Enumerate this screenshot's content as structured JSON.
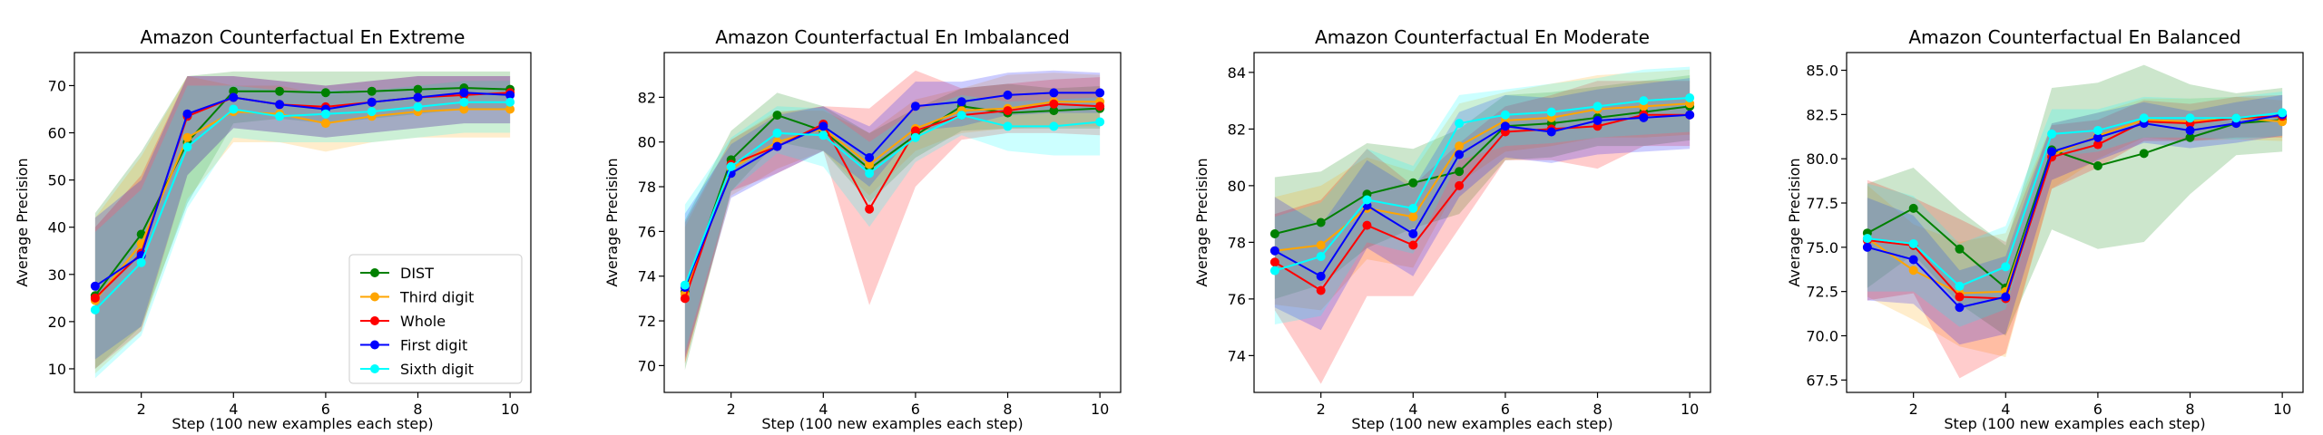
{
  "figure": {
    "steps": [
      1,
      2,
      3,
      4,
      5,
      6,
      7,
      8,
      9,
      10
    ]
  },
  "chart_data": [
    {
      "type": "line",
      "title": "Amazon Counterfactual En Extreme",
      "xlabel": "Step (100 new examples each step)",
      "ylabel": "Average Precision",
      "xlim": [
        0.55,
        10.45
      ],
      "ylim": [
        5,
        77
      ],
      "xticks": [
        2,
        4,
        6,
        8,
        10
      ],
      "yticks": [
        10,
        20,
        30,
        40,
        50,
        60,
        70
      ],
      "x": [
        1,
        2,
        3,
        4,
        5,
        6,
        7,
        8,
        9,
        10
      ],
      "legend": "lower right",
      "series": [
        {
          "name": "DIST",
          "color": "#008000",
          "values": [
            25.5,
            38.5,
            58.0,
            68.8,
            68.8,
            68.5,
            68.8,
            69.2,
            69.5,
            69.2
          ],
          "lower": [
            10,
            19,
            45,
            62,
            63,
            62,
            63,
            64,
            65,
            65
          ],
          "upper": [
            43,
            56,
            72,
            73,
            73,
            73,
            73,
            73,
            73,
            73
          ]
        },
        {
          "name": "Third digit",
          "color": "#ffa500",
          "values": [
            24.5,
            36.5,
            59.0,
            64.5,
            64.0,
            62.0,
            63.5,
            64.5,
            65.0,
            65.0
          ],
          "lower": [
            9,
            18,
            46,
            58,
            58,
            56,
            58,
            59,
            59,
            59
          ],
          "upper": [
            42,
            55,
            72,
            70,
            70,
            68,
            69,
            70,
            71,
            71
          ]
        },
        {
          "name": "Whole",
          "color": "#ff0000",
          "values": [
            25.0,
            34.5,
            63.5,
            67.5,
            66.0,
            65.5,
            66.5,
            67.5,
            68.0,
            68.5
          ],
          "lower": [
            10,
            18,
            51,
            61,
            60,
            59,
            60,
            61,
            62,
            62
          ],
          "upper": [
            40,
            51,
            72,
            72,
            71,
            70,
            71,
            72,
            72,
            72
          ]
        },
        {
          "name": "First digit",
          "color": "#0000ff",
          "values": [
            27.5,
            34.0,
            64.0,
            67.5,
            66.0,
            65.0,
            66.5,
            67.5,
            68.5,
            68.0
          ],
          "lower": [
            12,
            19,
            51,
            61,
            60,
            59,
            60,
            61,
            62,
            62
          ],
          "upper": [
            42,
            50,
            72,
            72,
            71,
            70,
            71,
            72,
            72,
            72
          ]
        },
        {
          "name": "Sixth digit",
          "color": "#00ffff",
          "values": [
            22.5,
            32.5,
            57.0,
            65.0,
            63.5,
            64.0,
            64.5,
            65.5,
            66.5,
            66.5
          ],
          "lower": [
            8,
            17,
            44,
            59,
            58,
            58,
            58,
            59,
            60,
            60
          ],
          "upper": [
            39,
            48,
            70,
            70,
            69,
            69,
            69,
            70,
            71,
            71
          ]
        }
      ]
    },
    {
      "type": "line",
      "title": "Amazon Counterfactual En Imbalanced",
      "xlabel": "Step (100 new examples each step)",
      "ylabel": "Average Precision",
      "xlim": [
        0.55,
        10.45
      ],
      "ylim": [
        68.8,
        84.0
      ],
      "xticks": [
        2,
        4,
        6,
        8,
        10
      ],
      "yticks": [
        70,
        72,
        74,
        76,
        78,
        80,
        82
      ],
      "x": [
        1,
        2,
        3,
        4,
        5,
        6,
        7,
        8,
        9,
        10
      ],
      "legend": "",
      "series": [
        {
          "name": "DIST",
          "color": "#008000",
          "values": [
            73.3,
            79.2,
            81.2,
            80.5,
            78.8,
            80.3,
            81.6,
            81.3,
            81.4,
            81.5
          ],
          "lower": [
            69.8,
            77.8,
            80.0,
            79.6,
            77.3,
            79.3,
            80.5,
            80.6,
            80.6,
            80.6
          ],
          "upper": [
            76.5,
            80.5,
            82.2,
            81.6,
            80.4,
            81.5,
            82.4,
            82.6,
            82.4,
            82.5
          ]
        },
        {
          "name": "Third digit",
          "color": "#ffa500",
          "values": [
            73.2,
            78.8,
            80.0,
            80.6,
            79.0,
            80.6,
            81.4,
            81.5,
            81.8,
            81.8
          ],
          "lower": [
            70.1,
            77.6,
            78.8,
            79.6,
            77.6,
            79.6,
            80.4,
            80.6,
            80.7,
            80.7
          ],
          "upper": [
            76.2,
            80.1,
            81.4,
            81.4,
            80.4,
            81.9,
            82.4,
            83.0,
            83.1,
            83.0
          ]
        },
        {
          "name": "Whole",
          "color": "#ff0000",
          "values": [
            73.0,
            79.0,
            79.8,
            80.8,
            77.0,
            80.5,
            81.2,
            81.4,
            81.7,
            81.6
          ],
          "lower": [
            70.1,
            77.8,
            78.6,
            79.6,
            72.7,
            78.0,
            80.1,
            80.4,
            80.4,
            80.3
          ],
          "upper": [
            76.4,
            80.1,
            81.3,
            81.6,
            81.5,
            83.2,
            82.4,
            82.6,
            82.8,
            82.9
          ]
        },
        {
          "name": "First digit",
          "color": "#0000ff",
          "values": [
            73.5,
            78.6,
            79.8,
            80.7,
            79.3,
            81.6,
            81.8,
            82.1,
            82.2,
            82.2
          ],
          "lower": [
            70.3,
            77.5,
            78.6,
            79.6,
            78.0,
            80.5,
            80.7,
            81.2,
            81.3,
            81.3
          ],
          "upper": [
            76.8,
            79.9,
            81.2,
            81.6,
            80.7,
            82.7,
            82.7,
            83.1,
            83.2,
            83.1
          ]
        },
        {
          "name": "Sixth digit",
          "color": "#00ffff",
          "values": [
            73.6,
            78.9,
            80.4,
            80.3,
            78.6,
            80.2,
            81.2,
            80.7,
            80.7,
            80.9
          ],
          "lower": [
            70.6,
            77.8,
            79.5,
            78.9,
            76.2,
            79.1,
            80.3,
            79.6,
            79.4,
            79.4
          ],
          "upper": [
            77.2,
            80.2,
            81.6,
            81.5,
            80.0,
            81.4,
            82.1,
            81.8,
            81.9,
            82.0
          ]
        }
      ]
    },
    {
      "type": "line",
      "title": "Amazon Counterfactual En Moderate",
      "xlabel": "Step (100 new examples each step)",
      "ylabel": "Average Precision",
      "xlim": [
        0.55,
        10.45
      ],
      "ylim": [
        72.7,
        84.7
      ],
      "xticks": [
        2,
        4,
        6,
        8,
        10
      ],
      "yticks": [
        74,
        76,
        78,
        80,
        82,
        84
      ],
      "x": [
        1,
        2,
        3,
        4,
        5,
        6,
        7,
        8,
        9,
        10
      ],
      "legend": "",
      "series": [
        {
          "name": "DIST",
          "color": "#008000",
          "values": [
            78.3,
            78.7,
            79.7,
            80.1,
            80.5,
            82.1,
            82.2,
            82.4,
            82.6,
            82.8
          ],
          "lower": [
            76.0,
            76.5,
            77.8,
            78.5,
            79.0,
            80.9,
            81.0,
            81.4,
            81.4,
            81.6
          ],
          "upper": [
            80.3,
            80.5,
            81.5,
            81.3,
            82.0,
            83.2,
            83.3,
            83.5,
            83.7,
            83.9
          ]
        },
        {
          "name": "Third digit",
          "color": "#ffa500",
          "values": [
            77.7,
            77.9,
            79.2,
            78.9,
            81.4,
            82.3,
            82.4,
            82.7,
            82.8,
            82.9
          ],
          "lower": [
            75.8,
            75.6,
            77.4,
            77.1,
            80.1,
            81.2,
            81.4,
            81.7,
            81.7,
            81.8
          ],
          "upper": [
            79.6,
            80.0,
            81.0,
            80.5,
            82.9,
            83.3,
            83.6,
            83.9,
            84.0,
            84.1
          ]
        },
        {
          "name": "Whole",
          "color": "#ff0000",
          "values": [
            77.3,
            76.3,
            78.6,
            77.9,
            80.0,
            81.9,
            82.0,
            82.1,
            82.5,
            82.5
          ],
          "lower": [
            75.6,
            73.0,
            76.1,
            76.1,
            78.5,
            80.9,
            80.9,
            80.6,
            81.4,
            81.4
          ],
          "upper": [
            79.0,
            79.5,
            81.3,
            80.0,
            81.5,
            82.8,
            83.2,
            83.7,
            83.7,
            83.7
          ]
        },
        {
          "name": "First digit",
          "color": "#0000ff",
          "values": [
            77.7,
            76.8,
            79.3,
            78.3,
            81.1,
            82.1,
            81.9,
            82.3,
            82.4,
            82.5
          ],
          "lower": [
            75.7,
            74.9,
            77.8,
            76.8,
            79.6,
            81.0,
            80.8,
            81.1,
            81.2,
            81.3
          ],
          "upper": [
            79.6,
            78.6,
            80.9,
            79.9,
            82.6,
            83.2,
            83.1,
            83.4,
            83.6,
            83.8
          ]
        },
        {
          "name": "Sixth digit",
          "color": "#00ffff",
          "values": [
            77.0,
            77.5,
            79.5,
            79.2,
            82.2,
            82.5,
            82.6,
            82.8,
            83.0,
            83.1
          ],
          "lower": [
            75.1,
            75.4,
            78.0,
            77.6,
            80.9,
            81.4,
            81.5,
            81.7,
            81.8,
            81.9
          ],
          "upper": [
            78.9,
            79.4,
            81.3,
            80.7,
            83.2,
            83.4,
            83.6,
            83.8,
            84.1,
            84.2
          ]
        }
      ]
    },
    {
      "type": "line",
      "title": "Amazon Counterfactual En Balanced",
      "xlabel": "Step (100 new examples each step)",
      "ylabel": "Average Precision",
      "xlim": [
        0.55,
        10.45
      ],
      "ylim": [
        66.8,
        86.0
      ],
      "xticks": [
        2,
        4,
        6,
        8,
        10
      ],
      "yticks": [
        67.5,
        70.0,
        72.5,
        75.0,
        77.5,
        80.0,
        82.5,
        85.0
      ],
      "x": [
        1,
        2,
        3,
        4,
        5,
        6,
        7,
        8,
        9,
        10
      ],
      "legend": "",
      "series": [
        {
          "name": "DIST",
          "color": "#008000",
          "values": [
            75.8,
            77.2,
            74.9,
            72.7,
            80.5,
            79.6,
            80.3,
            81.2,
            82.0,
            82.2
          ],
          "lower": [
            72.7,
            74.6,
            71.8,
            70.0,
            76.0,
            74.9,
            75.3,
            78.0,
            80.2,
            80.4
          ],
          "upper": [
            78.6,
            79.5,
            77.1,
            75.1,
            84.0,
            84.3,
            85.3,
            84.2,
            83.7,
            84.0
          ]
        },
        {
          "name": "Third digit",
          "color": "#ffa500",
          "values": [
            75.5,
            73.7,
            72.4,
            72.5,
            80.2,
            81.3,
            82.2,
            82.1,
            82.3,
            82.1
          ],
          "lower": [
            72.2,
            70.9,
            69.4,
            68.8,
            78.3,
            80.0,
            81.2,
            81.0,
            81.1,
            81.0
          ],
          "upper": [
            78.5,
            76.3,
            75.3,
            75.8,
            82.0,
            82.6,
            83.4,
            83.4,
            83.5,
            83.3
          ]
        },
        {
          "name": "Whole",
          "color": "#ff0000",
          "values": [
            75.4,
            75.1,
            72.2,
            72.1,
            80.1,
            80.8,
            82.1,
            82.0,
            82.3,
            82.4
          ],
          "lower": [
            72.0,
            72.4,
            67.6,
            69.0,
            78.3,
            79.5,
            81.0,
            81.0,
            81.2,
            81.2
          ],
          "upper": [
            78.8,
            77.8,
            76.6,
            75.3,
            81.9,
            82.2,
            83.3,
            83.1,
            83.5,
            83.6
          ]
        },
        {
          "name": "First digit",
          "color": "#0000ff",
          "values": [
            75.0,
            74.3,
            71.6,
            72.2,
            80.4,
            81.2,
            82.0,
            81.6,
            82.0,
            82.5
          ],
          "lower": [
            72.0,
            71.8,
            69.5,
            70.1,
            78.8,
            79.9,
            80.9,
            80.6,
            80.9,
            81.3
          ],
          "upper": [
            77.8,
            76.8,
            73.7,
            74.5,
            82.0,
            82.6,
            83.2,
            82.7,
            83.2,
            83.6
          ]
        },
        {
          "name": "Sixth digit",
          "color": "#00ffff",
          "values": [
            75.5,
            75.2,
            72.8,
            73.9,
            81.4,
            81.6,
            82.3,
            82.3,
            82.3,
            82.6
          ],
          "lower": [
            72.5,
            72.5,
            70.5,
            71.5,
            80.1,
            80.4,
            81.2,
            81.2,
            81.1,
            81.3
          ],
          "upper": [
            78.6,
            77.9,
            75.2,
            76.2,
            82.8,
            82.8,
            83.5,
            83.4,
            83.5,
            83.8
          ]
        }
      ]
    }
  ]
}
